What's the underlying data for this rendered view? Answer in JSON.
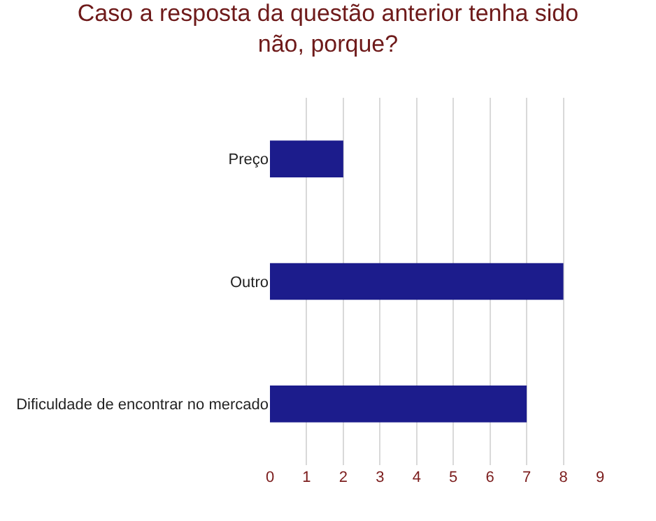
{
  "chart_data": {
    "type": "bar",
    "orientation": "horizontal",
    "title": "Caso a resposta da questão anterior tenha sido não, porque?",
    "categories": [
      "Preço",
      "Outro",
      "Dificuldade de encontrar no mercado"
    ],
    "values": [
      2,
      8,
      7
    ],
    "color": "#1c1c8c",
    "xlim": [
      0,
      9
    ],
    "xticks": [
      0,
      1,
      2,
      3,
      4,
      5,
      6,
      7,
      8,
      9
    ],
    "grid": "x"
  }
}
